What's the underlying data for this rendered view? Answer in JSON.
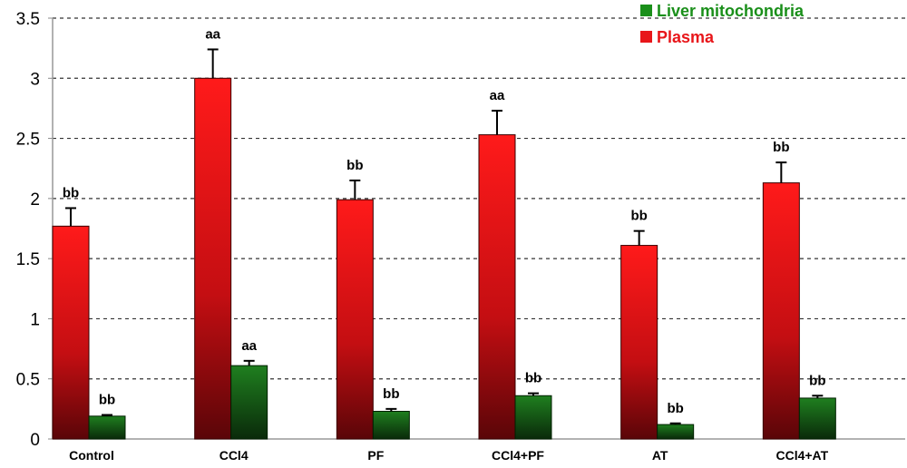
{
  "chart_data": {
    "type": "bar",
    "categories": [
      "Control",
      "CCl4",
      "PF",
      "CCl4+PF",
      "AT",
      "CCl4+AT"
    ],
    "series": [
      {
        "name": "Plasma",
        "color": "#e8161a",
        "values": [
          1.77,
          3.0,
          1.99,
          2.53,
          1.61,
          2.13
        ],
        "errors": [
          0.15,
          0.24,
          0.16,
          0.2,
          0.12,
          0.17
        ],
        "labels": [
          "bb",
          "aa",
          "bb",
          "aa",
          "bb",
          "bb"
        ]
      },
      {
        "name": "Liver mitochondria",
        "color": "#1e7a1e",
        "values": [
          0.19,
          0.61,
          0.23,
          0.36,
          0.12,
          0.34
        ],
        "errors": [
          0.01,
          0.04,
          0.02,
          0.02,
          0.01,
          0.02
        ],
        "labels": [
          "bb",
          "aa",
          "bb",
          "bb",
          "bb",
          "bb"
        ]
      }
    ],
    "title": "",
    "xlabel": "",
    "ylabel": "",
    "ylim": [
      0,
      3.5
    ],
    "yticks": [
      "0",
      "0.5",
      "1",
      "1.5",
      "2",
      "2.5",
      "3",
      "3.5"
    ],
    "grid": "horizontal-dashed",
    "legend": {
      "placement": "top-right",
      "entries": [
        {
          "name": "Liver mitochondria",
          "color": "#1a8f1a"
        },
        {
          "name": "Plasma",
          "color": "#e8161a"
        }
      ]
    }
  }
}
